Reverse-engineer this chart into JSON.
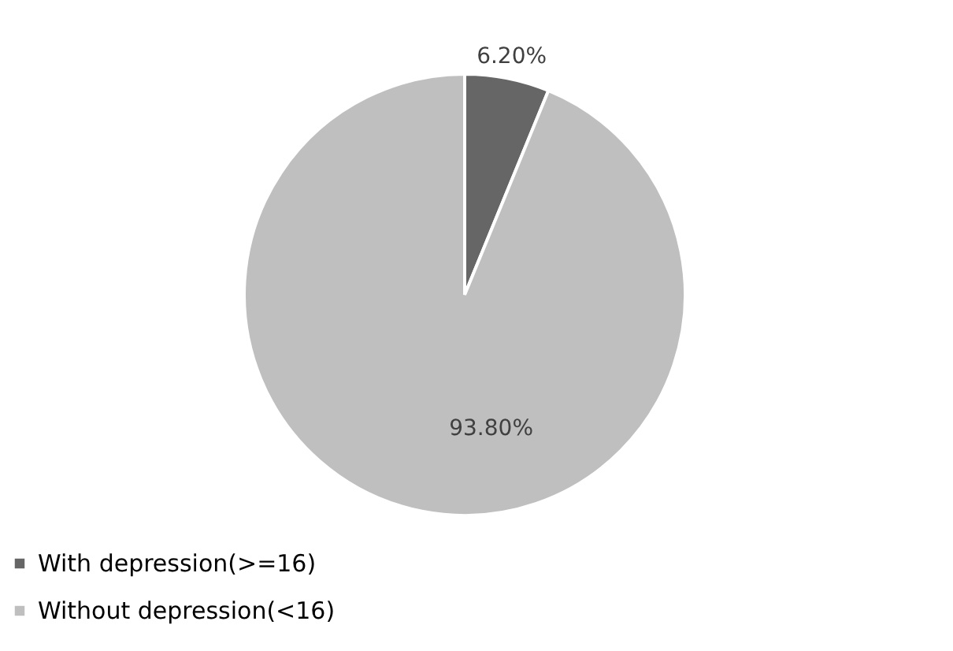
{
  "chart_data": {
    "type": "pie",
    "categories": [
      "With depression(>=16)",
      "Without depression(<16)"
    ],
    "values": [
      6.2,
      93.8
    ],
    "colors": [
      "#666666",
      "#bfbfbf"
    ],
    "value_labels": [
      "6.20%",
      "93.80%"
    ],
    "legend": "bottom"
  }
}
